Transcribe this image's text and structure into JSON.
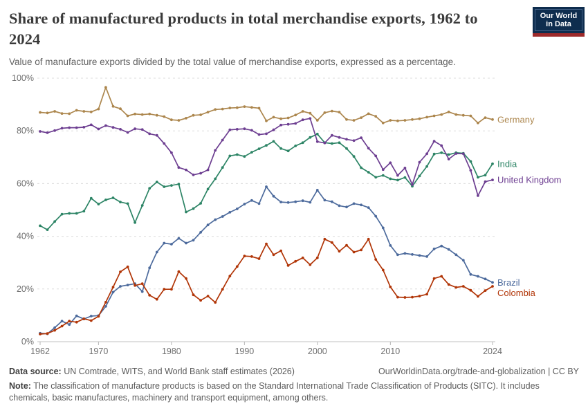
{
  "header": {
    "title": "Share of manufactured products in total merchandise exports, 1962 to 2024",
    "title_lines": [
      "Share of manufactured products in total merchandise exports, 1962 to",
      "2024"
    ],
    "subtitle": "Value of manufacture exports divided by the total value of merchandise exports, expressed as a percentage."
  },
  "logo": {
    "line1": "Our World",
    "line2": "in Data",
    "bg": "#0e2d4e",
    "bar": "#9e2a2b"
  },
  "chart_data": {
    "type": "line",
    "title": "Share of manufactured products in total merchandise exports, 1962 to 2024",
    "xlabel": "",
    "ylabel": "",
    "ylim": [
      0,
      100
    ],
    "grid": "dashed-horizontal",
    "legend_position": "right-of-line-ends",
    "yticks": [
      0,
      20,
      40,
      60,
      80,
      100
    ],
    "ytick_labels": [
      "0%",
      "20%",
      "40%",
      "60%",
      "80%",
      "100%"
    ],
    "xticks": [
      1962,
      1970,
      1980,
      1990,
      2000,
      2010,
      2024
    ],
    "years": [
      1962,
      1963,
      1964,
      1965,
      1966,
      1967,
      1968,
      1969,
      1970,
      1971,
      1972,
      1973,
      1974,
      1975,
      1976,
      1977,
      1978,
      1979,
      1980,
      1981,
      1982,
      1983,
      1984,
      1985,
      1986,
      1987,
      1988,
      1989,
      1990,
      1991,
      1992,
      1993,
      1994,
      1995,
      1996,
      1997,
      1998,
      1999,
      2000,
      2001,
      2002,
      2003,
      2004,
      2005,
      2006,
      2007,
      2008,
      2009,
      2010,
      2011,
      2012,
      2013,
      2014,
      2015,
      2016,
      2017,
      2018,
      2019,
      2020,
      2021,
      2022,
      2023,
      2024
    ],
    "series": [
      {
        "name": "Germany",
        "color": "#AC864D",
        "values": [
          87,
          86.8,
          87.4,
          86.6,
          86.5,
          87.8,
          87.4,
          87.2,
          88.3,
          96.5,
          89.3,
          88.4,
          85.7,
          86.4,
          86.2,
          86.4,
          85.9,
          85.4,
          84.2,
          84,
          84.8,
          85.9,
          86.1,
          87.1,
          88.1,
          88.3,
          88.7,
          88.8,
          89.2,
          88.9,
          88.6,
          83.8,
          85.2,
          84.6,
          84.9,
          86,
          87.4,
          86.7,
          84,
          86.9,
          87.5,
          87.1,
          84.3,
          84,
          85,
          86.5,
          85.5,
          83,
          84,
          83.8,
          84,
          84.3,
          84.6,
          85.2,
          85.7,
          86.2,
          87.2,
          86.2,
          85.9,
          85.7,
          83,
          85,
          84.3
        ]
      },
      {
        "name": "India",
        "color": "#2C8465",
        "values": [
          44,
          42.5,
          45.6,
          48.4,
          48.7,
          48.7,
          49.5,
          54.4,
          52.2,
          53.8,
          54.6,
          53,
          52.4,
          45.2,
          51.7,
          58.2,
          60.6,
          58.8,
          59.3,
          59.8,
          49.2,
          50.5,
          52.5,
          57.9,
          61.8,
          66.1,
          70.5,
          71,
          70.3,
          71.9,
          73.2,
          74.5,
          76,
          73.3,
          72.4,
          74.3,
          75.5,
          77.5,
          78.8,
          75.5,
          75.2,
          75.5,
          73.3,
          70.3,
          66,
          64.3,
          62.4,
          63.1,
          61.8,
          61.3,
          62.3,
          59,
          62.9,
          66.5,
          71.2,
          71.7,
          71,
          71.7,
          71.5,
          68.4,
          62.4,
          63.2,
          67.5
        ]
      },
      {
        "name": "United Kingdom",
        "color": "#6D3E91",
        "values": [
          79.8,
          79.3,
          80.1,
          81,
          81.2,
          81.2,
          81.4,
          82.3,
          80.7,
          82,
          81.3,
          80.6,
          79.4,
          80.8,
          80.5,
          78.9,
          78.3,
          75.2,
          71.7,
          66.1,
          65.2,
          63.3,
          63.9,
          65.2,
          72.6,
          76.5,
          80.4,
          80.6,
          80.8,
          80.2,
          78.6,
          78.9,
          80.4,
          82.2,
          82.5,
          82.8,
          84.2,
          84.7,
          75.9,
          75.4,
          78.3,
          77.5,
          76.8,
          76.3,
          77.4,
          73.4,
          70.5,
          65.3,
          67.9,
          63.1,
          65.9,
          59.6,
          68.1,
          71.3,
          76.1,
          74.4,
          69.3,
          71.4,
          71.3,
          65,
          55.4,
          60.7,
          61.4
        ]
      },
      {
        "name": "Brazil",
        "color": "#4C6A9C",
        "values": [
          3.2,
          3,
          5.3,
          7.8,
          6.5,
          9.8,
          8.6,
          9.7,
          9.9,
          13.4,
          18.8,
          21,
          21.5,
          22,
          19,
          28,
          34,
          37.4,
          37,
          39.2,
          37.4,
          38.5,
          41.5,
          44.3,
          46.3,
          47.5,
          49.1,
          50.4,
          52.2,
          53.6,
          52.4,
          58.8,
          55.2,
          53,
          52.8,
          53.1,
          53.5,
          52.9,
          57.5,
          53.7,
          53.1,
          51.6,
          51.1,
          52.4,
          51.9,
          50.9,
          47.6,
          43.2,
          36.5,
          33,
          33.5,
          33.1,
          32.7,
          32.3,
          35.2,
          36.3,
          35,
          33,
          30.9,
          25.5,
          24.8,
          23.8,
          22.5
        ]
      },
      {
        "name": "Colombia",
        "color": "#B13507",
        "values": [
          2.9,
          3.1,
          4.3,
          5.9,
          7.8,
          7.4,
          8.7,
          8,
          9.6,
          15,
          20.7,
          26.5,
          28.4,
          21.3,
          22,
          17.6,
          16.1,
          19.9,
          19.9,
          26.6,
          24,
          17.8,
          15.7,
          17.3,
          14.9,
          19.9,
          24.9,
          28.5,
          32.5,
          32.3,
          31.5,
          37.1,
          33,
          34.5,
          28.9,
          30.5,
          31.8,
          29.2,
          31.8,
          38.9,
          37.6,
          34.3,
          36.6,
          34,
          34.8,
          38.9,
          31.2,
          27.2,
          20.8,
          16.9,
          16.8,
          16.9,
          17.3,
          18,
          24,
          24.8,
          21.7,
          20.6,
          21,
          19.5,
          17.2,
          19.4,
          21
        ]
      }
    ]
  },
  "footer": {
    "data_source_label": "Data source:",
    "data_source_text": "UN Comtrade, WITS, and World Bank staff estimates (2026)",
    "attribution": "OurWorldinData.org/trade-and-globalization | CC BY",
    "note_label": "Note:",
    "note_text": "The classification of manufacture products is based on the Standard International Trade Classification of Products (SITC). It includes chemicals, basic manufactures, machinery and transport equipment, among others."
  }
}
